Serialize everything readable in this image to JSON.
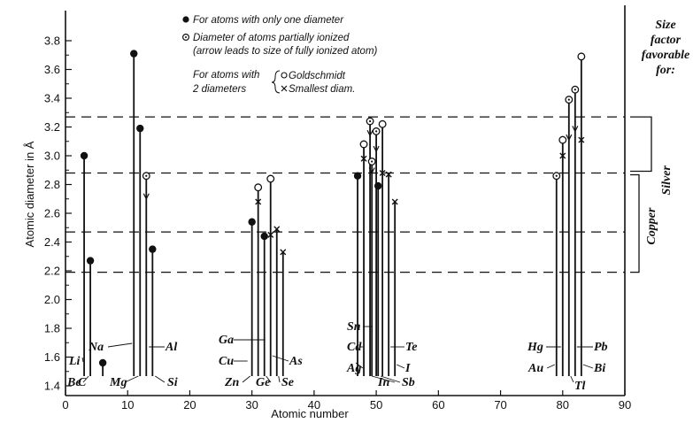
{
  "chart_data": {
    "type": "scatter",
    "xlabel": "Atomic number",
    "ylabel": "Atomic diameter in Å",
    "xlim": [
      0,
      90
    ],
    "ylim": [
      1.4,
      3.9
    ],
    "xticks": [
      0,
      10,
      20,
      30,
      40,
      50,
      60,
      70,
      80,
      90
    ],
    "yticks": [
      1.4,
      1.6,
      1.8,
      2.0,
      2.2,
      2.4,
      2.6,
      2.8,
      3.0,
      3.2,
      3.4,
      3.6,
      3.8
    ],
    "grid": false,
    "legend": {
      "filled": "For atoms with only one diameter",
      "ionized_line1": "Diameter of atoms partially ionized",
      "ionized_line2": "(arrow leads to size of fully ionized atom)",
      "two_prefix_line1": "For atoms with",
      "two_prefix_line2": "2 diameters",
      "goldschmidt": "Goldschmidt",
      "smallest": "Smallest diam."
    },
    "size_factor_label": [
      "Size",
      "factor",
      "favorable",
      "for:"
    ],
    "bands": [
      {
        "name": "Silver",
        "y_lower": 2.88,
        "y_upper": 3.27
      },
      {
        "name": "Copper",
        "y_lower": 2.19,
        "y_upper": 2.47
      }
    ],
    "points": [
      {
        "element": "Li",
        "z": 3,
        "kind": "filled",
        "y": 3.0
      },
      {
        "element": "Be",
        "z": 4,
        "kind": "filled",
        "y": 2.27
      },
      {
        "element": "C",
        "z": 6,
        "kind": "filled",
        "y": 1.56
      },
      {
        "element": "Na",
        "z": 11,
        "kind": "filled",
        "y": 3.71
      },
      {
        "element": "Mg",
        "z": 12,
        "kind": "filled",
        "y": 3.19
      },
      {
        "element": "Al",
        "z": 13,
        "kind": "ionized",
        "y": 2.86,
        "y_to": 2.7
      },
      {
        "element": "Si",
        "z": 14,
        "kind": "filled",
        "y": 2.35
      },
      {
        "element": "Zn",
        "z": 30,
        "kind": "filled",
        "y": 2.54
      },
      {
        "element": "Ga",
        "z": 31,
        "kind": "two",
        "y": 2.78,
        "y_small": 2.68
      },
      {
        "element": "Ge",
        "z": 32,
        "kind": "filled",
        "y": 2.44
      },
      {
        "element": "Ge",
        "z": 33,
        "kind": "two",
        "y": 2.84,
        "y_small": 2.45
      },
      {
        "element": "As",
        "z": 34,
        "kind": "smallest",
        "y": 2.49
      },
      {
        "element": "Se",
        "z": 35,
        "kind": "smallest",
        "y": 2.33
      },
      {
        "element": "Ag",
        "z": 47,
        "kind": "filled",
        "y": 2.86
      },
      {
        "element": "Cd",
        "z": 48,
        "kind": "two",
        "y": 3.08,
        "y_small": 2.98
      },
      {
        "element": "In",
        "z": 49,
        "kind": "ionized",
        "y": 3.24,
        "y_to": 3.14
      },
      {
        "element": "In",
        "z": 49.3,
        "kind": "ionized",
        "y": 2.96,
        "y_to": 2.88
      },
      {
        "element": "Sn",
        "z": 50,
        "kind": "ionized",
        "y": 3.17,
        "y_to": 3.03
      },
      {
        "element": "Sn",
        "z": 50.3,
        "kind": "filled",
        "y": 2.79
      },
      {
        "element": "Sb",
        "z": 51,
        "kind": "two",
        "y": 3.22,
        "y_small": 2.88
      },
      {
        "element": "Te",
        "z": 52,
        "kind": "smallest",
        "y": 2.87
      },
      {
        "element": "I",
        "z": 53,
        "kind": "smallest",
        "y": 2.68
      },
      {
        "element": "Au",
        "z": 79,
        "kind": "ionized",
        "y": 2.86,
        "y_to": 2.88
      },
      {
        "element": "Hg",
        "z": 80,
        "kind": "two",
        "y": 3.11,
        "y_small": 3.0
      },
      {
        "element": "Tl",
        "z": 81,
        "kind": "ionized",
        "y": 3.39,
        "y_to": 3.11
      },
      {
        "element": "Tl",
        "z": 82,
        "kind": "ionized",
        "y": 3.46,
        "y_to": 3.17
      },
      {
        "element": "Pb",
        "z": 83,
        "kind": "two",
        "y": 3.69,
        "y_small": 3.11
      }
    ],
    "labels": [
      {
        "text": "Li",
        "z": 3
      },
      {
        "text": "Be",
        "z": 4
      },
      {
        "text": "C",
        "z": 6
      },
      {
        "text": "Na",
        "z": 11
      },
      {
        "text": "Mg",
        "z": 12
      },
      {
        "text": "Al",
        "z": 13
      },
      {
        "text": "Si",
        "z": 14
      },
      {
        "text": "Ga",
        "z": 31
      },
      {
        "text": "Cu",
        "z": 29
      },
      {
        "text": "Zn",
        "z": 30
      },
      {
        "text": "Ge",
        "z": 32
      },
      {
        "text": "As",
        "z": 33
      },
      {
        "text": "Se",
        "z": 34
      },
      {
        "text": "Sn",
        "z": 50
      },
      {
        "text": "Cd",
        "z": 48
      },
      {
        "text": "Ag",
        "z": 47
      },
      {
        "text": "In",
        "z": 49
      },
      {
        "text": "Sb",
        "z": 51
      },
      {
        "text": "Te",
        "z": 52
      },
      {
        "text": "I",
        "z": 53
      },
      {
        "text": "Hg",
        "z": 80
      },
      {
        "text": "Au",
        "z": 79
      },
      {
        "text": "Tl",
        "z": 81
      },
      {
        "text": "Pb",
        "z": 82
      },
      {
        "text": "Bi",
        "z": 83
      }
    ]
  }
}
